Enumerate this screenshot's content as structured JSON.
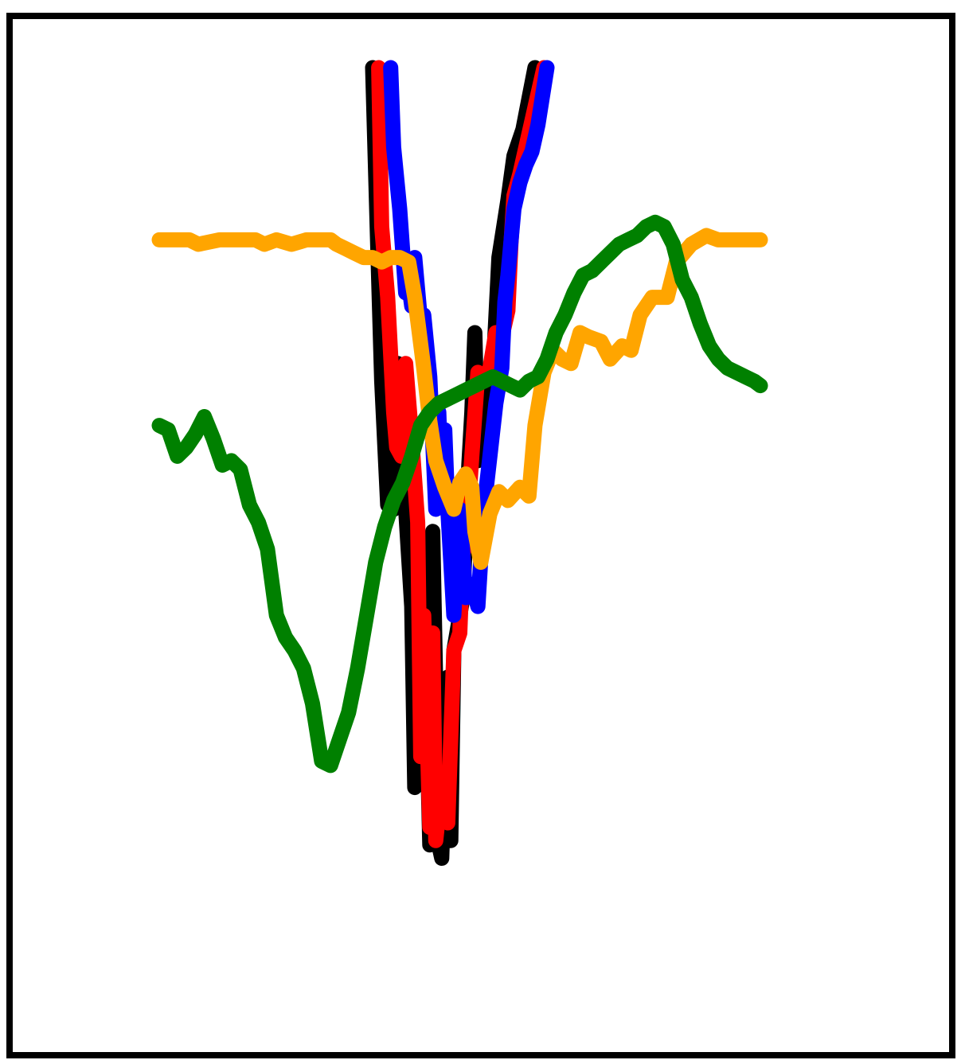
{
  "chart_data": {
    "type": "line",
    "title": "",
    "xlabel": "",
    "ylabel": "",
    "xlim": [
      0,
      100
    ],
    "ylim": [
      0,
      100
    ],
    "grid": false,
    "legend": "none",
    "series": [
      {
        "color": "#000000",
        "x": [
          35.5,
          36.5,
          37.0,
          38.0,
          39.0,
          39.7,
          40.0,
          41.0,
          42.0,
          42.5,
          44.0,
          45.0,
          45.5,
          46.5,
          47.0,
          48.0,
          48.5,
          49.0,
          50.5,
          51.5,
          52.0,
          52.5,
          53.0,
          54.0,
          55.5,
          56.5,
          58.0,
          59.0,
          60.5,
          61.5,
          62.5
        ],
        "y": [
          100.0,
          76.0,
          64.5,
          50.5,
          50.0,
          66.5,
          52.5,
          50.0,
          39.0,
          18.5,
          40.0,
          12.0,
          47.5,
          12.0,
          10.5,
          31.0,
          12.5,
          34.0,
          40.0,
          55.0,
          61.0,
          70.0,
          55.5,
          57.5,
          65.0,
          78.5,
          85.0,
          90.0,
          93.0,
          96.5,
          100.0
        ]
      },
      {
        "color": "#ff0000",
        "x": [
          36.5,
          37.0,
          38.0,
          39.0,
          39.5,
          40.3,
          41.0,
          42.0,
          43.0,
          43.5,
          44.0,
          45.0,
          45.5,
          46.0,
          47.0,
          48.0,
          49.0,
          50.0,
          50.5,
          51.0,
          52.0,
          53.0,
          54.0,
          55.0,
          56.0,
          57.0,
          58.0,
          58.5,
          59.0,
          60.0,
          61.0,
          62.0,
          63.0,
          64.0
        ],
        "y": [
          100.0,
          82.0,
          74.0,
          61.0,
          57.0,
          56.0,
          66.5,
          58.0,
          48.5,
          22.0,
          38.0,
          14.0,
          36.0,
          12.5,
          19.0,
          14.5,
          34.0,
          36.0,
          45.0,
          46.0,
          56.0,
          65.5,
          64.5,
          66.0,
          70.0,
          69.5,
          72.5,
          80.0,
          85.5,
          88.0,
          91.0,
          94.0,
          97.0,
          100.0
        ]
      },
      {
        "color": "#0000ff",
        "x": [
          38.5,
          39.0,
          40.0,
          41.0,
          41.5,
          42.0,
          42.5,
          43.5,
          44.0,
          45.0,
          46.0,
          46.5,
          47.0,
          47.5,
          48.0,
          49.0,
          50.0,
          51.0,
          52.0,
          53.0,
          54.0,
          55.0,
          56.0,
          57.0,
          57.5,
          58.0,
          59.0,
          60.0,
          61.0,
          62.0,
          63.0,
          64.5
        ],
        "y": [
          100.0,
          91.0,
          84.0,
          74.5,
          75.5,
          73.0,
          78.5,
          71.0,
          72.0,
          65.0,
          50.0,
          61.0,
          51.5,
          59.0,
          50.0,
          38.0,
          50.0,
          40.0,
          41.5,
          39.0,
          50.0,
          56.0,
          62.0,
          66.0,
          73.5,
          76.5,
          84.0,
          87.0,
          89.0,
          90.5,
          93.5,
          100.0
        ]
      },
      {
        "color": "#ffa500",
        "x": [
          0.0,
          3.0,
          5.0,
          6.5,
          10.0,
          13.0,
          14.5,
          16.0,
          17.5,
          19.5,
          22.0,
          24.5,
          27.0,
          28.5,
          29.5,
          31.0,
          32.5,
          34.0,
          35.5,
          37.0,
          38.5,
          40.0,
          41.5,
          42.5,
          44.0,
          45.0,
          46.0,
          47.5,
          49.0,
          50.0,
          51.0,
          52.0,
          52.5,
          53.5,
          55.0,
          56.5,
          58.0,
          60.0,
          61.5,
          62.5,
          64.0,
          65.5,
          67.0,
          68.5,
          70.0,
          71.5,
          73.5,
          75.0,
          77.0,
          78.5,
          80.0,
          82.0,
          84.5,
          86.0,
          88.5,
          91.0,
          93.0,
          100.0
        ],
        "y": [
          80.5,
          80.5,
          80.5,
          80.0,
          80.5,
          80.5,
          80.5,
          80.5,
          80.0,
          80.5,
          80.0,
          80.5,
          80.5,
          80.5,
          80.0,
          79.5,
          79.0,
          78.5,
          78.5,
          78.0,
          78.5,
          78.5,
          78.0,
          74.0,
          66.0,
          60.0,
          55.5,
          52.5,
          50.0,
          53.0,
          54.0,
          52.5,
          47.5,
          44.0,
          49.5,
          52.0,
          51.0,
          52.5,
          51.5,
          59.5,
          65.5,
          68.0,
          67.0,
          66.5,
          70.0,
          69.5,
          69.0,
          67.0,
          68.5,
          68.0,
          72.0,
          74.0,
          74.0,
          78.0,
          80.0,
          81.0,
          80.5,
          80.5
        ]
      },
      {
        "color": "#008000",
        "x": [
          0.0,
          1.5,
          3.0,
          4.5,
          6.0,
          7.5,
          9.0,
          10.5,
          12.0,
          13.5,
          15.0,
          16.5,
          18.0,
          19.5,
          21.0,
          22.5,
          24.0,
          25.5,
          27.0,
          28.5,
          30.0,
          31.5,
          33.0,
          34.5,
          36.0,
          37.5,
          39.0,
          40.5,
          42.0,
          43.5,
          45.0,
          46.5,
          48.0,
          49.5,
          51.0,
          52.5,
          54.0,
          55.5,
          57.0,
          58.5,
          60.0,
          61.5,
          63.0,
          64.5,
          66.0,
          67.5,
          69.0,
          70.5,
          72.0,
          73.5,
          75.0,
          76.5,
          78.0,
          79.5,
          81.0,
          82.5,
          84.0,
          85.5,
          87.0,
          88.5,
          90.0,
          91.5,
          93.0,
          94.5,
          96.0,
          97.5,
          99.0,
          100.0
        ],
        "y": [
          59.5,
          59.0,
          56.0,
          57.0,
          58.5,
          60.5,
          58.0,
          55.0,
          55.5,
          54.5,
          50.5,
          48.5,
          45.5,
          38.0,
          35.5,
          34.0,
          32.0,
          28.0,
          21.5,
          21.0,
          24.0,
          27.0,
          32.0,
          38.0,
          44.0,
          48.0,
          51.0,
          53.0,
          56.0,
          59.5,
          61.0,
          62.0,
          62.5,
          63.0,
          63.5,
          64.0,
          64.5,
          65.0,
          64.5,
          64.0,
          63.5,
          64.5,
          65.0,
          67.0,
          70.0,
          72.0,
          74.5,
          76.5,
          77.0,
          78.0,
          79.0,
          80.0,
          80.5,
          81.0,
          82.0,
          82.5,
          82.0,
          80.0,
          76.0,
          74.0,
          71.0,
          68.5,
          67.0,
          66.0,
          65.5,
          65.0,
          64.5,
          64.0
        ]
      }
    ]
  }
}
